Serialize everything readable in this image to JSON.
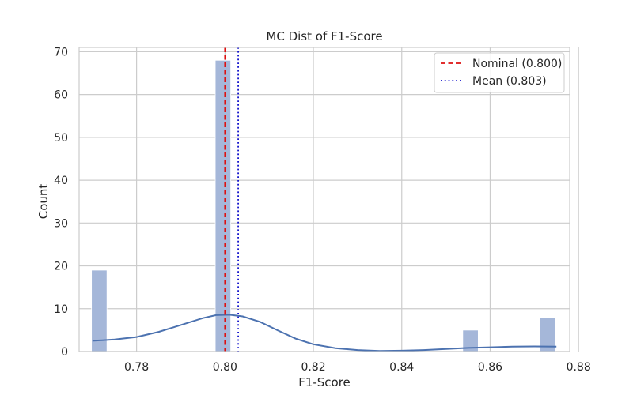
{
  "chart_data": {
    "type": "bar",
    "title": "MC Dist of F1-Score",
    "xlabel": "F1-Score",
    "ylabel": "Count",
    "xlim": [
      0.767,
      0.878
    ],
    "ylim": [
      0,
      71
    ],
    "xticks": [
      "0.78",
      "0.80",
      "0.82",
      "0.84",
      "0.86",
      "0.88"
    ],
    "xtick_values": [
      0.78,
      0.8,
      0.82,
      0.84,
      0.86,
      0.88
    ],
    "yticks": [
      "0",
      "10",
      "20",
      "30",
      "40",
      "50",
      "60",
      "70"
    ],
    "ytick_values": [
      0,
      10,
      20,
      30,
      40,
      50,
      60,
      70
    ],
    "grid": true,
    "histogram": {
      "color": "#a5b7d9",
      "bins": [
        {
          "x0": 0.7698,
          "x1": 0.7733,
          "count": 19
        },
        {
          "x0": 0.7978,
          "x1": 0.8013,
          "count": 68
        },
        {
          "x0": 0.8538,
          "x1": 0.8573,
          "count": 5
        },
        {
          "x0": 0.8713,
          "x1": 0.8748,
          "count": 8
        }
      ]
    },
    "kde": {
      "color": "#4c72b0",
      "x": [
        0.77,
        0.775,
        0.78,
        0.785,
        0.79,
        0.795,
        0.798,
        0.801,
        0.804,
        0.808,
        0.812,
        0.816,
        0.82,
        0.825,
        0.83,
        0.835,
        0.84,
        0.845,
        0.85,
        0.855,
        0.86,
        0.865,
        0.87,
        0.875
      ],
      "y": [
        2.5,
        2.8,
        3.4,
        4.6,
        6.2,
        7.8,
        8.5,
        8.6,
        8.2,
        6.9,
        4.9,
        3.0,
        1.7,
        0.8,
        0.35,
        0.15,
        0.2,
        0.35,
        0.6,
        0.85,
        1.0,
        1.15,
        1.2,
        1.15
      ]
    },
    "reference_lines": [
      {
        "name": "Nominal (0.800)",
        "x": 0.8,
        "color": "#dd1111",
        "style": "dashed"
      },
      {
        "name": "Mean (0.803)",
        "x": 0.803,
        "color": "#1111cc",
        "style": "dotted"
      }
    ],
    "legend_position": "top-right"
  }
}
